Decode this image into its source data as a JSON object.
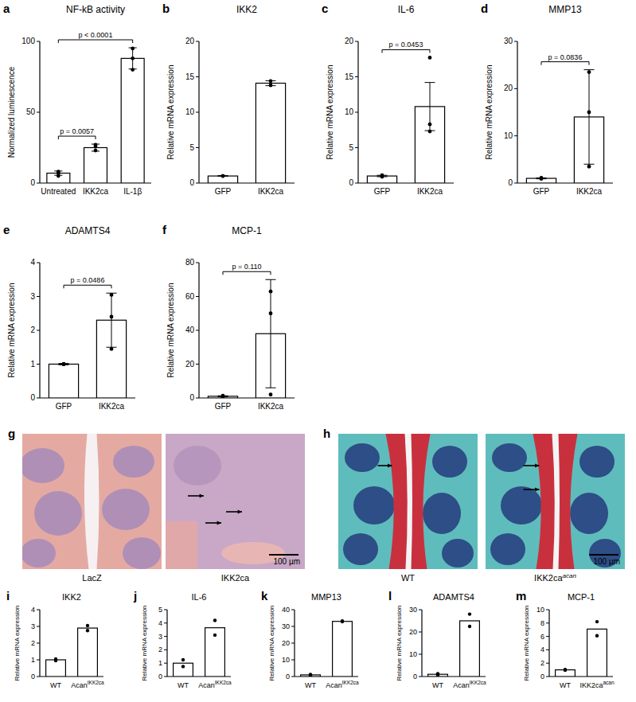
{
  "chart_data": [
    {
      "type": "bar",
      "panel": "a",
      "title": "NF-kB activity",
      "y_label": "Normalized luminescence",
      "color": "#ffffff",
      "categories": [
        "Untreated",
        "IKK2ca",
        "IL-1β"
      ],
      "values": [
        7,
        25,
        88
      ],
      "errors": [
        1.5,
        2.5,
        7.5
      ],
      "points": [
        [
          5,
          7,
          8
        ],
        [
          23,
          26,
          27
        ],
        [
          80,
          88,
          95
        ]
      ],
      "ylim": [
        0,
        100
      ],
      "yticks": [
        0,
        50,
        100
      ],
      "annotations": [
        {
          "text": "p = 0.0057",
          "between": [
            "Untreated",
            "IKK2ca"
          ]
        },
        {
          "text": "p < 0.0001",
          "between": [
            "Untreated",
            "IL-1β"
          ]
        }
      ]
    },
    {
      "type": "bar",
      "panel": "b",
      "title": "IKK2",
      "y_label": "Relative mRNA expression",
      "color": "#ffffff",
      "categories": [
        "GFP",
        "IKK2ca"
      ],
      "values": [
        1,
        14.1
      ],
      "errors": [
        0.05,
        0.35
      ],
      "points": [
        [
          1,
          1
        ],
        [
          13.8,
          14.4
        ]
      ],
      "ylim": [
        0,
        20
      ],
      "yticks": [
        0,
        5,
        10,
        15,
        20
      ],
      "annotations": []
    },
    {
      "type": "bar",
      "panel": "c",
      "title": "IL-6",
      "y_label": "Relative mRNA expression",
      "color": "#ffffff",
      "categories": [
        "GFP",
        "IKK2ca"
      ],
      "values": [
        1,
        10.8
      ],
      "errors": [
        0.1,
        3.4
      ],
      "points": [
        [
          0.9,
          1,
          1.1
        ],
        [
          17.7,
          8.3,
          7.3
        ]
      ],
      "ylim": [
        0,
        20
      ],
      "yticks": [
        0,
        5,
        10,
        15,
        20
      ],
      "annotations": [
        {
          "text": "p = 0.0453",
          "between": [
            "GFP",
            "IKK2ca"
          ]
        }
      ]
    },
    {
      "type": "bar",
      "panel": "d",
      "title": "MMP13",
      "y_label": "Relative mRNA expression",
      "color": "#ffffff",
      "categories": [
        "GFP",
        "IKK2ca"
      ],
      "values": [
        1,
        14
      ],
      "errors": [
        0.1,
        10
      ],
      "points": [
        [
          0.9,
          1,
          1.1
        ],
        [
          23.5,
          15,
          3.5
        ]
      ],
      "ylim": [
        0,
        30
      ],
      "yticks": [
        0,
        10,
        20,
        30
      ],
      "annotations": [
        {
          "text": "p = 0.0836",
          "between": [
            "GFP",
            "IKK2ca"
          ]
        }
      ]
    },
    {
      "type": "bar",
      "panel": "e",
      "title": "ADAMTS4",
      "y_label": "Relative mRNA expression",
      "color": "#ffffff",
      "categories": [
        "GFP",
        "IKK2ca"
      ],
      "values": [
        1,
        2.3
      ],
      "errors": [
        0.02,
        0.8
      ],
      "points": [
        [
          1,
          1,
          1
        ],
        [
          3.05,
          2.4,
          1.45
        ]
      ],
      "ylim": [
        0,
        4
      ],
      "yticks": [
        0,
        1,
        2,
        3,
        4
      ],
      "annotations": [
        {
          "text": "p = 0.0486",
          "between": [
            "GFP",
            "IKK2ca"
          ]
        }
      ]
    },
    {
      "type": "bar",
      "panel": "f",
      "title": "MCP-1",
      "y_label": "Relative mRNA expression",
      "color": "#ffffff",
      "categories": [
        "GFP",
        "IKK2ca"
      ],
      "values": [
        1,
        38
      ],
      "errors": [
        0.3,
        32
      ],
      "points": [
        [
          0.7,
          1,
          1.3
        ],
        [
          63,
          50,
          2
        ]
      ],
      "ylim": [
        0,
        80
      ],
      "yticks": [
        0,
        20,
        40,
        60,
        80
      ],
      "annotations": [
        {
          "text": "p = 0.110",
          "between": [
            "GFP",
            "IKK2ca"
          ]
        }
      ]
    },
    {
      "type": "bar",
      "panel": "i",
      "title": "IKK2",
      "y_label": "Relative mRNA expression",
      "color": "#ffffff",
      "categories": [
        "WT",
        "Acan"
      ],
      "category_superscripts": [
        null,
        "IKK2ca"
      ],
      "values": [
        1,
        2.9
      ],
      "points": [
        [
          0.95,
          1.05
        ],
        [
          2.75,
          3.05
        ]
      ],
      "ylim": [
        0,
        4
      ],
      "yticks": [
        0,
        1,
        2,
        3,
        4
      ],
      "annotations": []
    },
    {
      "type": "bar",
      "panel": "j",
      "title": "IL-6",
      "y_label": "Relative mRNA expression",
      "color": "#ffffff",
      "categories": [
        "WT",
        "Acan"
      ],
      "category_superscripts": [
        null,
        "IKK2ca"
      ],
      "values": [
        1,
        3.65
      ],
      "points": [
        [
          0.75,
          1.25
        ],
        [
          3.1,
          4.2
        ]
      ],
      "ylim": [
        0,
        5
      ],
      "yticks": [
        0,
        1,
        2,
        3,
        4,
        5
      ],
      "annotations": []
    },
    {
      "type": "bar",
      "panel": "k",
      "title": "MMP13",
      "y_label": "Relative mRNA expression",
      "color": "#ffffff",
      "categories": [
        "WT",
        "Acan"
      ],
      "category_superscripts": [
        null,
        "IKK2ca"
      ],
      "values": [
        1,
        33
      ],
      "points": [
        [
          0.8,
          1.2
        ],
        [
          32.8,
          33.2
        ]
      ],
      "ylim": [
        0,
        40
      ],
      "yticks": [
        0,
        10,
        20,
        30,
        40
      ],
      "annotations": []
    },
    {
      "type": "bar",
      "panel": "l",
      "title": "ADAMTS4",
      "y_label": "Relative mRNA expression",
      "color": "#ffffff",
      "categories": [
        "WT",
        "Acan"
      ],
      "category_superscripts": [
        null,
        "IKK2ca"
      ],
      "values": [
        1,
        25
      ],
      "points": [
        [
          0.7,
          1.3
        ],
        [
          22.5,
          28
        ]
      ],
      "ylim": [
        0,
        30
      ],
      "yticks": [
        0,
        10,
        20,
        30
      ],
      "annotations": []
    },
    {
      "type": "bar",
      "panel": "m",
      "title": "MCP-1",
      "y_label": "Relative mRNA expression",
      "color": "#ffffff",
      "categories": [
        "WT",
        "IKK2ca"
      ],
      "category_superscripts": [
        null,
        "acan"
      ],
      "values": [
        1,
        7.1
      ],
      "points": [
        [
          0.95,
          1.05
        ],
        [
          6.1,
          8.2
        ]
      ],
      "ylim": [
        0,
        10
      ],
      "yticks": [
        0,
        2,
        4,
        6,
        8,
        10
      ],
      "annotations": []
    }
  ],
  "images": [
    {
      "panel": "g",
      "captions": [
        "LacZ",
        "IKK2ca"
      ],
      "caption_superscripts": [
        null,
        null
      ],
      "scale_bar": "100 µm"
    },
    {
      "panel": "h",
      "captions": [
        "WT",
        "IKK2ca"
      ],
      "caption_superscripts": [
        null,
        "acan"
      ],
      "scale_bar": "100 µm"
    }
  ]
}
